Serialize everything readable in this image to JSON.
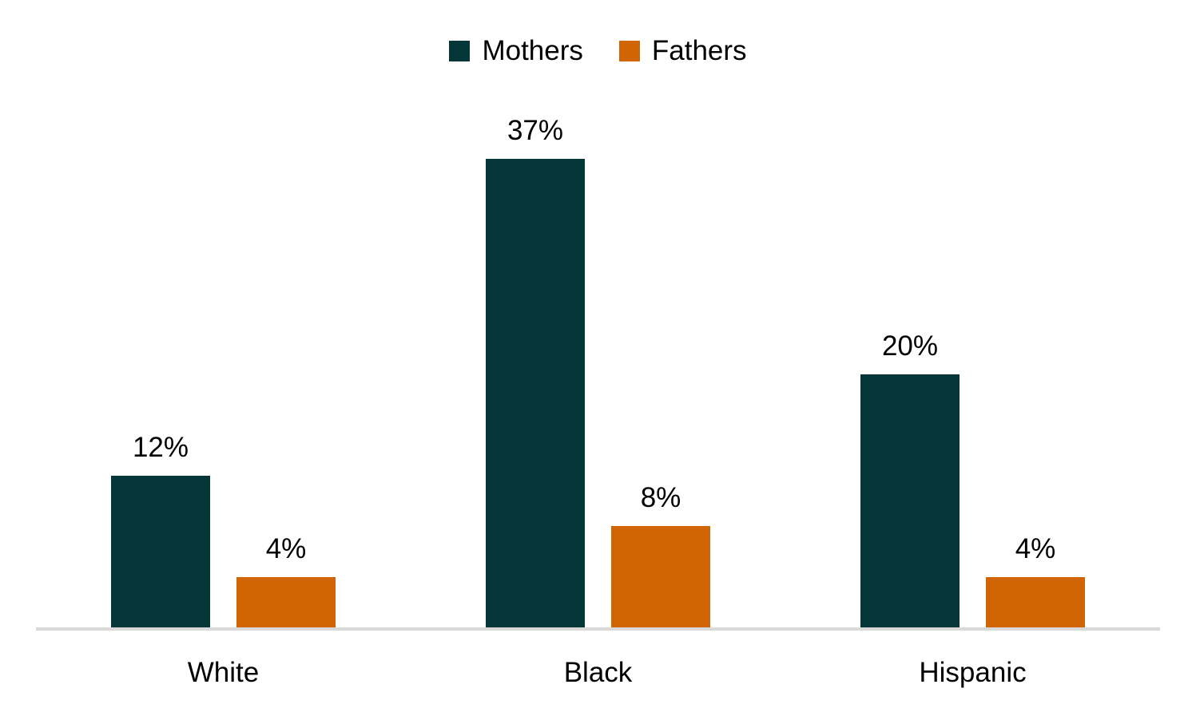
{
  "chart_data": {
    "type": "bar",
    "title": "",
    "xlabel": "",
    "ylabel": "",
    "categories": [
      "White",
      "Black",
      "Hispanic"
    ],
    "series": [
      {
        "name": "Mothers",
        "color": "#053638",
        "values": [
          12,
          37,
          20
        ],
        "labels": [
          "12%",
          "37%",
          "20%"
        ]
      },
      {
        "name": "Fathers",
        "color": "#d16503",
        "values": [
          4,
          8,
          4
        ],
        "labels": [
          "4%",
          "8%",
          "4%"
        ]
      }
    ],
    "value_suffix": "%",
    "ylim": [
      0,
      40
    ],
    "grid": false,
    "legend_position": "top-center",
    "axis_line_color": "#d9d9d9",
    "label_color": "#000000",
    "background": "#ffffff"
  }
}
